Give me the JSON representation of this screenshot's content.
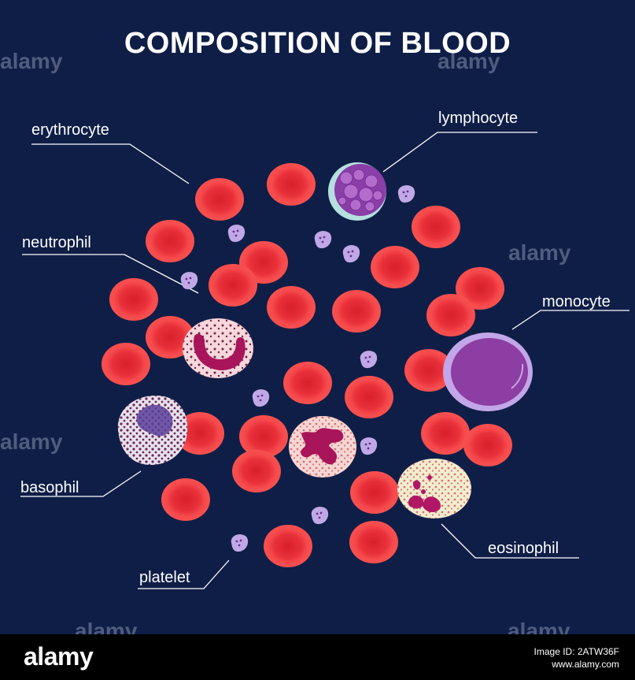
{
  "title": "COMPOSITION OF BLOOD",
  "labels": {
    "erythrocyte": "erythrocyte",
    "lymphocyte": "lymphocyte",
    "neutrophil": "neutrophil",
    "monocyte": "monocyte",
    "basophil": "basophil",
    "eosinophil": "eosinophil",
    "platelet": "platelet"
  },
  "watermark": "alamy",
  "footer": {
    "brand": "alamy",
    "image_id": "Image ID: 2ATW36F",
    "site": "www.alamy.com"
  },
  "colors": {
    "background": "#0f1e47",
    "erythrocyte": "#f0343a",
    "lymphocyte": "#8a3ea8",
    "monocyte": "#8c3ea2",
    "platelet": "#c0a8e6",
    "neutrophil_nucleus": "#a8155a"
  }
}
